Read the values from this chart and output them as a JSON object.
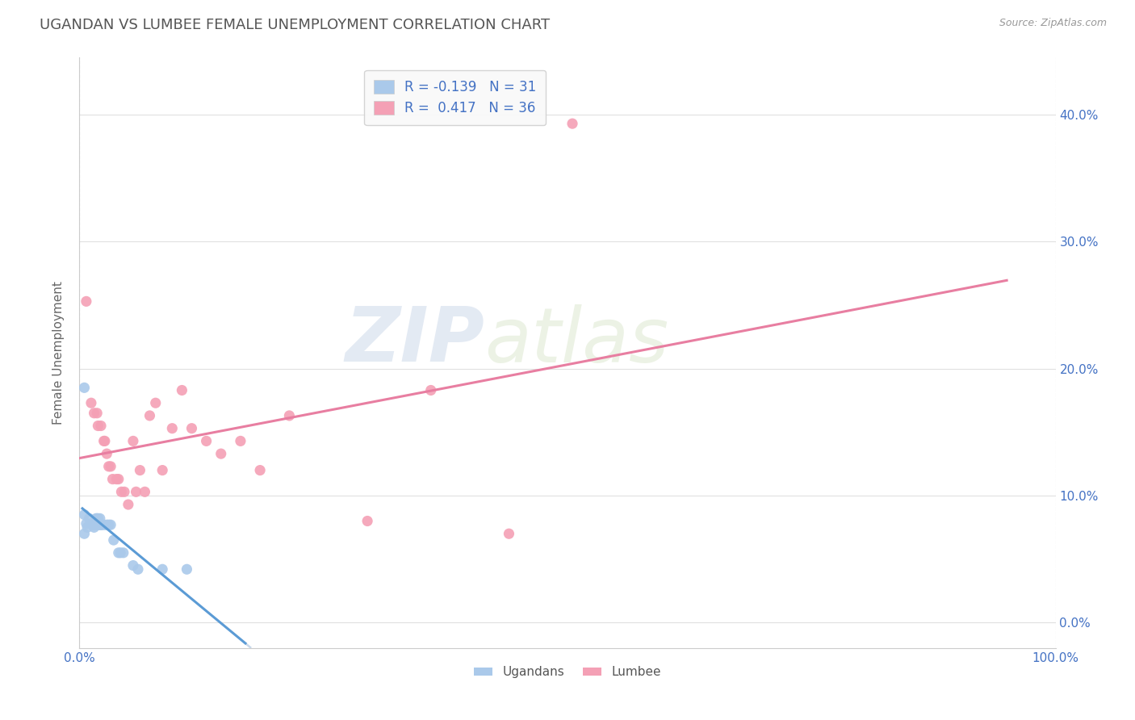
{
  "title": "UGANDAN VS LUMBEE FEMALE UNEMPLOYMENT CORRELATION CHART",
  "source": "Source: ZipAtlas.com",
  "ylabel": "Female Unemployment",
  "watermark_zip": "ZIP",
  "watermark_atlas": "atlas",
  "legend_ugandan_label": "Ugandans",
  "legend_lumbee_label": "Lumbee",
  "ugandan_R": -0.139,
  "ugandan_N": 31,
  "lumbee_R": 0.417,
  "lumbee_N": 36,
  "ugandan_color": "#aac9ea",
  "lumbee_color": "#f4a0b5",
  "ugandan_line_color": "#5b9bd5",
  "lumbee_line_color": "#e87ea1",
  "trend_dash_color": "#c8d8ea",
  "background_color": "#ffffff",
  "title_color": "#555555",
  "axis_label_color": "#666666",
  "tick_color": "#4472c4",
  "grid_color": "#e0e0e0",
  "grid_dash_color": "#d8d8d8",
  "xlim": [
    0.0,
    1.0
  ],
  "ylim": [
    -0.02,
    0.445
  ],
  "xticks": [
    0.0,
    1.0
  ],
  "xticklabels": [
    "0.0%",
    "100.0%"
  ],
  "yticks_right": [
    0.0,
    0.1,
    0.2,
    0.3,
    0.4
  ],
  "yticklabels_right": [
    "0.0%",
    "10.0%",
    "20.0%",
    "30.0%",
    "40.0%"
  ],
  "ugandan_x": [
    0.005,
    0.005,
    0.005,
    0.007,
    0.008,
    0.01,
    0.012,
    0.013,
    0.014,
    0.015,
    0.015,
    0.017,
    0.018,
    0.018,
    0.019,
    0.02,
    0.021,
    0.022,
    0.022,
    0.025,
    0.028,
    0.03,
    0.032,
    0.035,
    0.04,
    0.042,
    0.045,
    0.055,
    0.06,
    0.085,
    0.11
  ],
  "ugandan_y": [
    0.185,
    0.085,
    0.07,
    0.078,
    0.075,
    0.082,
    0.078,
    0.077,
    0.077,
    0.077,
    0.075,
    0.082,
    0.082,
    0.077,
    0.082,
    0.077,
    0.082,
    0.077,
    0.077,
    0.077,
    0.077,
    0.077,
    0.077,
    0.065,
    0.055,
    0.055,
    0.055,
    0.045,
    0.042,
    0.042,
    0.042
  ],
  "lumbee_x": [
    0.007,
    0.012,
    0.015,
    0.018,
    0.019,
    0.022,
    0.025,
    0.026,
    0.028,
    0.03,
    0.032,
    0.034,
    0.038,
    0.04,
    0.043,
    0.046,
    0.05,
    0.055,
    0.058,
    0.062,
    0.067,
    0.072,
    0.078,
    0.085,
    0.095,
    0.105,
    0.115,
    0.13,
    0.145,
    0.165,
    0.185,
    0.215,
    0.295,
    0.36,
    0.44,
    0.505
  ],
  "lumbee_y": [
    0.253,
    0.173,
    0.165,
    0.165,
    0.155,
    0.155,
    0.143,
    0.143,
    0.133,
    0.123,
    0.123,
    0.113,
    0.113,
    0.113,
    0.103,
    0.103,
    0.093,
    0.143,
    0.103,
    0.12,
    0.103,
    0.163,
    0.173,
    0.12,
    0.153,
    0.183,
    0.153,
    0.143,
    0.133,
    0.143,
    0.12,
    0.163,
    0.08,
    0.183,
    0.07,
    0.393
  ],
  "figsize": [
    14.06,
    8.92
  ],
  "dpi": 100
}
